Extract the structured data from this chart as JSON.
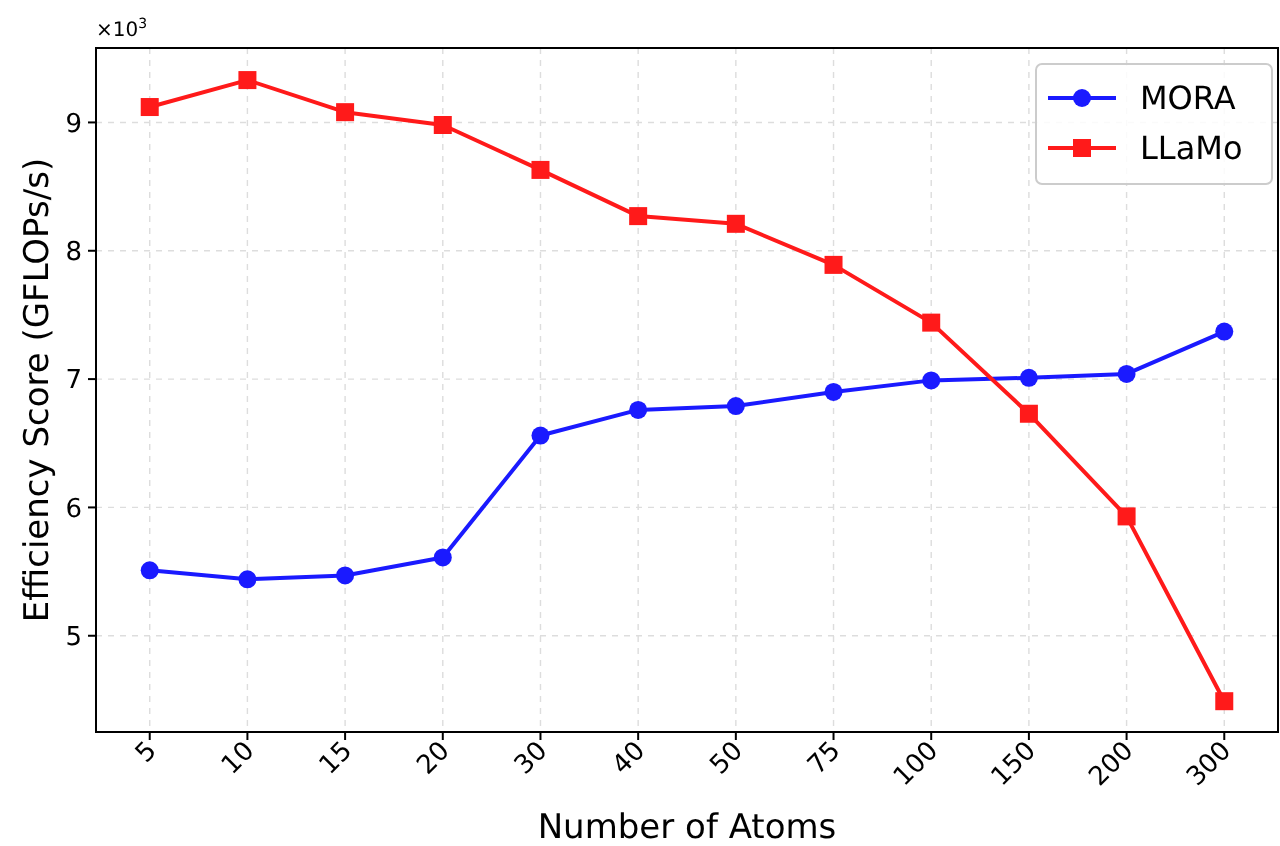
{
  "chart_data": {
    "type": "line",
    "xlabel": "Number of Atoms",
    "ylabel": "Efficiency Score (GFLOPs/s)",
    "categories": [
      "5",
      "10",
      "15",
      "20",
      "30",
      "40",
      "50",
      "75",
      "100",
      "150",
      "200",
      "300"
    ],
    "series": [
      {
        "name": "MORA",
        "color": "#1a1aff",
        "marker": "circle",
        "values": [
          5.51,
          5.44,
          5.47,
          5.61,
          6.56,
          6.76,
          6.79,
          6.9,
          6.99,
          7.01,
          7.04,
          7.37
        ]
      },
      {
        "name": "LLaMo",
        "color": "#ff1a1a",
        "marker": "square",
        "values": [
          9.12,
          9.33,
          9.08,
          8.98,
          8.63,
          8.27,
          8.21,
          7.89,
          7.44,
          6.73,
          5.93,
          4.49
        ]
      }
    ],
    "ylim": [
      4.25,
      9.58
    ],
    "yticks": [
      5,
      6,
      7,
      8,
      9
    ],
    "annotations": [
      "×10$^{3}$"
    ],
    "grid": true,
    "legend": "top right",
    "line_style": "solid"
  }
}
